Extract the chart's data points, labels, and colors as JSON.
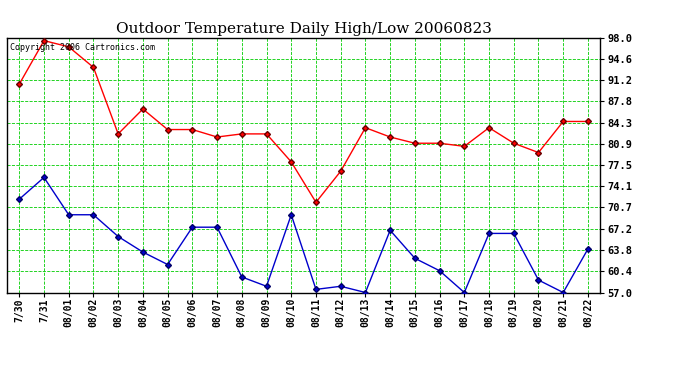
{
  "title": "Outdoor Temperature Daily High/Low 20060823",
  "copyright": "Copyright 2006 Cartronics.com",
  "x_labels": [
    "7/30",
    "7/31",
    "08/01",
    "08/02",
    "08/03",
    "08/04",
    "08/05",
    "08/06",
    "08/07",
    "08/08",
    "08/09",
    "08/10",
    "08/11",
    "08/12",
    "08/13",
    "08/14",
    "08/15",
    "08/16",
    "08/17",
    "08/18",
    "08/19",
    "08/20",
    "08/21",
    "08/22"
  ],
  "high_temps": [
    90.5,
    97.5,
    96.5,
    93.2,
    82.5,
    86.5,
    83.2,
    83.2,
    82.0,
    82.5,
    82.5,
    78.0,
    71.5,
    76.5,
    83.5,
    82.0,
    81.0,
    81.0,
    80.5,
    83.5,
    81.0,
    79.5,
    84.5,
    84.5
  ],
  "low_temps": [
    72.0,
    75.5,
    69.5,
    69.5,
    66.0,
    63.5,
    61.5,
    67.5,
    67.5,
    59.5,
    58.0,
    69.5,
    57.5,
    58.0,
    57.0,
    67.0,
    62.5,
    60.5,
    57.0,
    66.5,
    66.5,
    59.0,
    57.0,
    64.0
  ],
  "high_color": "#ff0000",
  "low_color": "#0000cc",
  "bg_color": "#ffffff",
  "grid_color": "#00cc00",
  "marker": "D",
  "marker_size": 3,
  "ylim_min": 57.0,
  "ylim_max": 98.0,
  "yticks": [
    57.0,
    60.4,
    63.8,
    67.2,
    70.7,
    74.1,
    77.5,
    80.9,
    84.3,
    87.8,
    91.2,
    94.6,
    98.0
  ],
  "ytick_labels": [
    "57.0",
    "60.4",
    "63.8",
    "67.2",
    "70.7",
    "74.1",
    "77.5",
    "80.9",
    "84.3",
    "87.8",
    "91.2",
    "94.6",
    "98.0"
  ]
}
